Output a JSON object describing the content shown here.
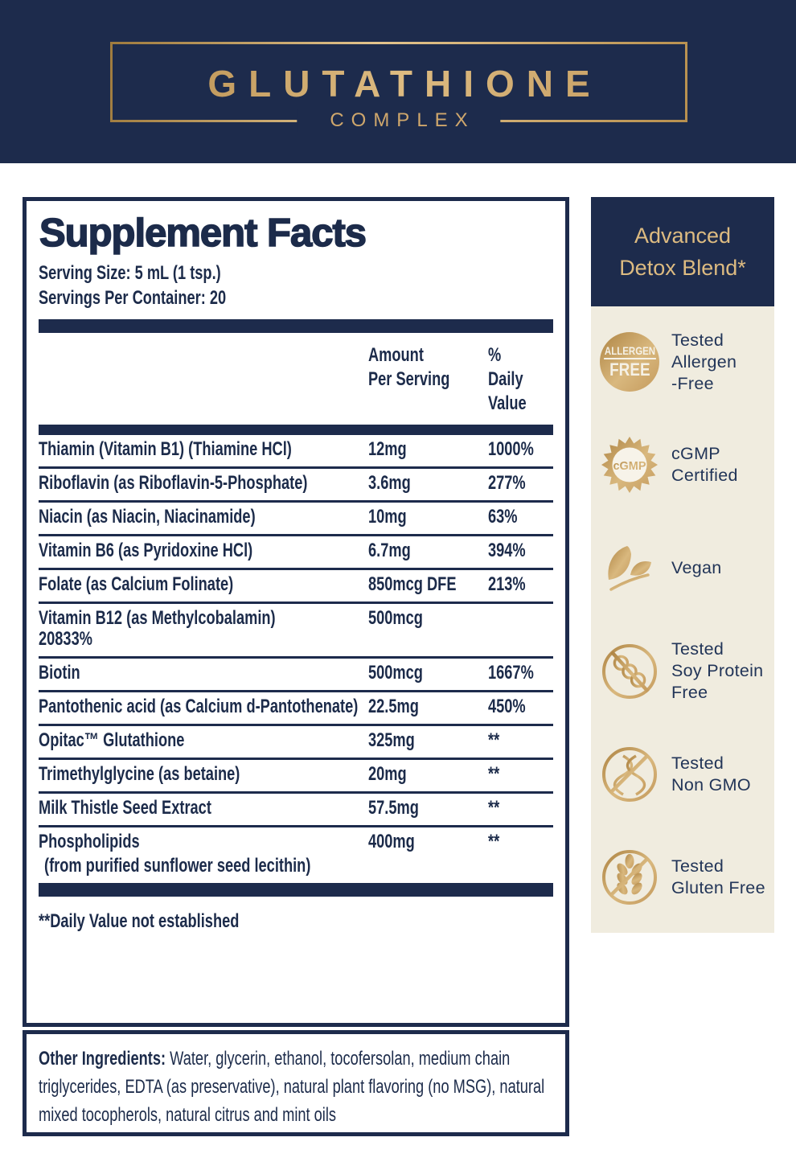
{
  "header": {
    "title": "GLUTATHIONE",
    "subtitle": "COMPLEX"
  },
  "panel": {
    "title": "Supplement Facts",
    "serving_size": "Serving Size: 5 mL (1 tsp.)",
    "servings_per_container": "Servings Per Container: 20",
    "col_amount": "Amount\nPer Serving",
    "col_daily": "% Daily\nValue",
    "rows": [
      {
        "name": "Thiamin (Vitamin B1) (Thiamine HCl)",
        "amount": "12mg",
        "dv": "1000%"
      },
      {
        "name": "Riboflavin (as Riboflavin-5-Phosphate)",
        "amount": "3.6mg",
        "dv": "277%"
      },
      {
        "name": "Niacin (as Niacin, Niacinamide)",
        "amount": "10mg",
        "dv": "63%"
      },
      {
        "name": "Vitamin B6 (as Pyridoxine HCl)",
        "amount": "6.7mg",
        "dv": "394%"
      },
      {
        "name": "Folate (as Calcium Folinate)",
        "amount": "850mcg DFE",
        "dv": "213%"
      },
      {
        "name": "Vitamin B12 (as Methylcobalamin)",
        "amount": "500mcg",
        "dv": "20833%"
      },
      {
        "name": "Biotin",
        "amount": "500mcg",
        "dv": "1667%"
      },
      {
        "name": "Pantothenic acid (as Calcium d-Pantothenate)",
        "amount": "22.5mg",
        "dv": "450%"
      },
      {
        "name": "Opitac™ Glutathione",
        "amount": "325mg",
        "dv": "**"
      },
      {
        "name": "Trimethylglycine (as betaine)",
        "amount": "20mg",
        "dv": "**"
      },
      {
        "name": "Milk Thistle Seed Extract",
        "amount": "57.5mg",
        "dv": "**"
      },
      {
        "name": "Phospholipids",
        "sub": "(from purified sunflower seed lecithin)",
        "amount": "400mg",
        "dv": "**"
      }
    ],
    "footnote": "**Daily Value not established"
  },
  "other_ingredients": {
    "label": "Other Ingredients:",
    "text": "Water, glycerin, ethanol, tocofersolan, medium chain triglycerides, EDTA (as preservative), natural plant flavoring (no MSG), natural mixed tocopherols, natural citrus and mint oils"
  },
  "sidebar": {
    "title": "Advanced\nDetox Blend*",
    "allergen_badge_line1": "ALLERGEN",
    "allergen_badge_line2": "FREE",
    "cgmp_seal_text": "cGMP",
    "badges": [
      {
        "icon": "allergen-free-icon",
        "label": "Tested\nAllergen\n-Free"
      },
      {
        "icon": "cgmp-seal-icon",
        "label": "cGMP\nCertified"
      },
      {
        "icon": "vegan-leaf-icon",
        "label": "Vegan"
      },
      {
        "icon": "no-soy-icon",
        "label": "Tested\nSoy Protein\nFree"
      },
      {
        "icon": "no-gmo-dna-icon",
        "label": "Tested\nNon GMO"
      },
      {
        "icon": "no-gluten-wheat-icon",
        "label": "Tested\nGluten Free"
      }
    ]
  },
  "colors": {
    "navy": "#1d2b4c",
    "gold": "#c9a265",
    "cream": "#f0ecdf"
  }
}
